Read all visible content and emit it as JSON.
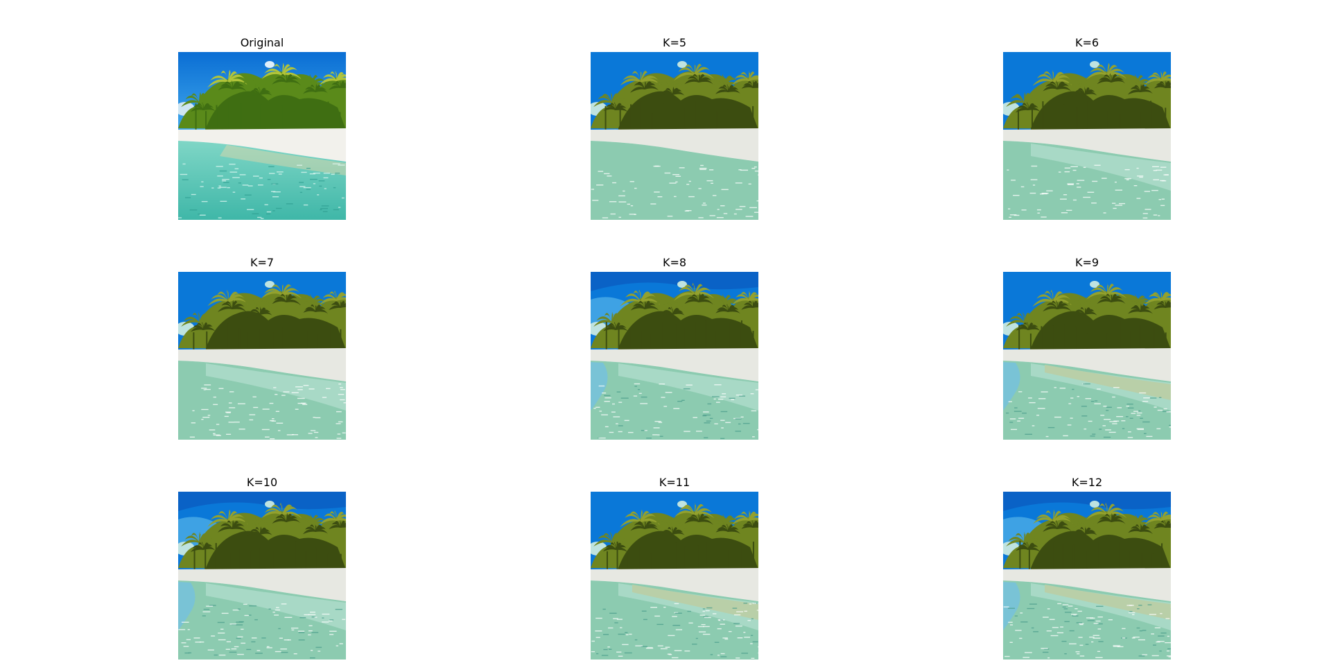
{
  "figure": {
    "panels": [
      {
        "title": "Original",
        "image": "beach-original-photo"
      },
      {
        "title": "K=5",
        "image": "beach-quantized-k5",
        "k": 5
      },
      {
        "title": "K=6",
        "image": "beach-quantized-k6",
        "k": 6
      },
      {
        "title": "K=7",
        "image": "beach-quantized-k7",
        "k": 7
      },
      {
        "title": "K=8",
        "image": "beach-quantized-k8",
        "k": 8
      },
      {
        "title": "K=9",
        "image": "beach-quantized-k9",
        "k": 9
      },
      {
        "title": "K=10",
        "image": "beach-quantized-k10",
        "k": 10
      },
      {
        "title": "K=11",
        "image": "beach-quantized-k11",
        "k": 11
      },
      {
        "title": "K=12",
        "image": "beach-quantized-k12",
        "k": 12
      }
    ]
  },
  "palette": {
    "sky": "#0a78d8",
    "sky_dark": "#0a62c6",
    "sky_light": "#3ea2e4",
    "cloud": "#bfe3e0",
    "foliage_dark": "#3c4d10",
    "foliage_mid": "#6f8520",
    "foliage_light": "#93a12e",
    "sand": "#e7e8e2",
    "water": "#8ccbb0",
    "water_light": "#a8d9c6",
    "water_blue": "#79c3d6",
    "water_shadow": "#4a9c8b",
    "sand_shallow": "#b9cfa8",
    "orig_sky_top": "#0a6ed4",
    "orig_sky_bottom": "#41a9ec",
    "orig_sand": "#f2f1ec",
    "orig_water_top": "#7fd6c6",
    "orig_water_bottom": "#3fb7a8",
    "orig_foliage": "#5a8a1a",
    "orig_foliage_light": "#b2c43a"
  }
}
